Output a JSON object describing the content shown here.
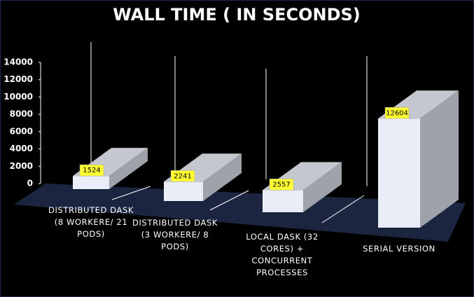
{
  "chart_data": {
    "type": "bar3d",
    "title": "WALL TIME ( IN SECONDS)",
    "categories": [
      "DISTRIBUTED DASK (8 WORKERE/ 21 PODS)",
      "DISTRIBUTED DASK (3 WORKERE/ 8 PODS)",
      "LOCAL DASK (32 CORES) + CONCURRENT PROCESSES",
      "SERIAL VERSION"
    ],
    "values": [
      1524,
      2241,
      2557,
      12604
    ],
    "color": "#e9edf8",
    "ylim": [
      0,
      14000
    ],
    "yticks": [
      0,
      2000,
      4000,
      6000,
      8000,
      10000,
      12000,
      14000
    ]
  }
}
